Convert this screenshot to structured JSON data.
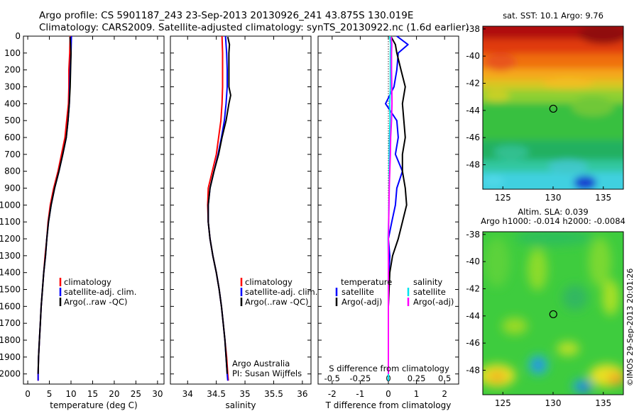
{
  "header": {
    "line1": "Argo profile: CS 5901187_243 23-Sep-2013 20130926_241 43.875S 130.019E",
    "line2": "Climatology: CARS2009. Satellite-adjusted climatology: synTS_20130922.nc (1.6d earlier)"
  },
  "side_label": "©IMOS 29-Sep-2013 20:01:26",
  "colors": {
    "climatology": "#ff0000",
    "satellite": "#0000ff",
    "argo": "#000000",
    "sat_diff": "#00e5ee",
    "argo_diff": "#ff00ff"
  },
  "chart_data": [
    {
      "type": "line",
      "panel": "temperature",
      "xlabel": "temperature (deg C)",
      "ylabel": "",
      "xlim": [
        -1,
        31.5
      ],
      "ylim": [
        2060,
        0
      ],
      "xticks": [
        0,
        5,
        10,
        15,
        20,
        25,
        30
      ],
      "yticks": [
        0,
        100,
        200,
        300,
        400,
        500,
        600,
        700,
        800,
        900,
        1000,
        1100,
        1200,
        1300,
        1400,
        1500,
        1600,
        1700,
        1800,
        1900,
        2000
      ],
      "legend": [
        "climatology",
        "satellite-adj. clim.",
        "Argo(..raw -QC)"
      ],
      "series": [
        {
          "name": "climatology",
          "color": "#ff0000",
          "depth": [
            0,
            100,
            200,
            300,
            400,
            500,
            600,
            700,
            800,
            900,
            1000,
            1100,
            1200,
            1300,
            1400,
            1500,
            1600,
            1700,
            1800,
            1900,
            2000,
            2040
          ],
          "values": [
            9.8,
            9.7,
            9.5,
            9.5,
            9.4,
            9.0,
            8.6,
            7.8,
            7.0,
            6.0,
            5.2,
            4.7,
            4.4,
            4.0,
            3.7,
            3.4,
            3.1,
            2.9,
            2.7,
            2.5,
            2.4,
            2.4
          ]
        },
        {
          "name": "satellite-adj. clim.",
          "color": "#0000ff",
          "depth": [
            0,
            100,
            200,
            300,
            400,
            500,
            600,
            700,
            800,
            900,
            1000,
            1100,
            1200,
            1300,
            1400,
            1500,
            1600,
            1700,
            1800,
            1900,
            2000,
            2040
          ],
          "values": [
            10.1,
            10.0,
            9.8,
            9.7,
            9.6,
            9.3,
            8.9,
            8.1,
            7.2,
            6.2,
            5.4,
            4.8,
            4.4,
            4.1,
            3.7,
            3.4,
            3.1,
            2.9,
            2.7,
            2.5,
            2.4,
            2.4
          ]
        },
        {
          "name": "Argo(..raw -QC)",
          "color": "#000000",
          "depth": [
            5,
            50,
            100,
            200,
            300,
            400,
            500,
            600,
            700,
            800,
            900,
            1000,
            1100,
            1200,
            1300,
            1400,
            1500,
            1600,
            1700,
            1800,
            1900,
            2000
          ],
          "values": [
            9.76,
            9.9,
            10.0,
            9.9,
            9.8,
            9.6,
            9.3,
            8.9,
            8.1,
            7.2,
            6.2,
            5.4,
            4.8,
            4.4,
            4.1,
            3.7,
            3.4,
            3.1,
            2.9,
            2.7,
            2.5,
            2.4
          ]
        }
      ]
    },
    {
      "type": "line",
      "panel": "salinity",
      "xlabel": "salinity",
      "ylabel": "",
      "xlim": [
        33.7,
        36.15
      ],
      "ylim": [
        2060,
        0
      ],
      "xticks": [
        34,
        34.5,
        35,
        35.5,
        36
      ],
      "legend": [
        "climatology",
        "satellite-adj. clim.",
        "Argo(..raw -QC)"
      ],
      "annotations": [
        "Argo Australia",
        "PI: Susan Wijffels"
      ],
      "series": [
        {
          "name": "climatology",
          "color": "#ff0000",
          "depth": [
            0,
            100,
            200,
            300,
            400,
            500,
            600,
            700,
            800,
            900,
            1000,
            1100,
            1200,
            1300,
            1400,
            1500,
            1600,
            1700,
            1800,
            1900,
            2000,
            2040
          ],
          "values": [
            34.6,
            34.61,
            34.61,
            34.61,
            34.6,
            34.58,
            34.54,
            34.5,
            34.43,
            34.36,
            34.35,
            34.36,
            34.39,
            34.44,
            34.5,
            34.55,
            34.59,
            34.62,
            34.65,
            34.68,
            34.7,
            34.71
          ]
        },
        {
          "name": "satellite-adj. clim.",
          "color": "#0000ff",
          "depth": [
            0,
            100,
            200,
            300,
            400,
            500,
            600,
            700,
            800,
            900,
            1000,
            1100,
            1200,
            1300,
            1400,
            1500,
            1600,
            1700,
            1800,
            1900,
            2000,
            2040
          ],
          "values": [
            34.66,
            34.68,
            34.69,
            34.69,
            34.67,
            34.64,
            34.59,
            34.53,
            34.46,
            34.39,
            34.36,
            34.36,
            34.39,
            34.44,
            34.5,
            34.55,
            34.59,
            34.62,
            34.65,
            34.67,
            34.69,
            34.7
          ]
        },
        {
          "name": "Argo(..raw -QC)",
          "color": "#000000",
          "depth": [
            5,
            50,
            100,
            200,
            300,
            350,
            400,
            500,
            600,
            700,
            800,
            900,
            1000,
            1100,
            1200,
            1300,
            1400,
            1500,
            1600,
            1700,
            1800,
            1900,
            2000
          ],
          "values": [
            34.7,
            34.73,
            34.72,
            34.72,
            34.72,
            34.75,
            34.72,
            34.67,
            34.6,
            34.54,
            34.46,
            34.39,
            34.36,
            34.36,
            34.39,
            34.44,
            34.5,
            34.55,
            34.59,
            34.62,
            34.65,
            34.67,
            34.69
          ]
        }
      ]
    },
    {
      "type": "line",
      "panel": "differences",
      "xlabel": "T difference from climatology",
      "xlabel_top": "S difference from climatology",
      "xlim": [
        -2.5,
        2.5
      ],
      "ylim": [
        2060,
        0
      ],
      "xticks": [
        -2,
        -1,
        0,
        1,
        2
      ],
      "xticks_s": [
        -0.5,
        -0.25,
        0,
        0.25,
        0.5
      ],
      "legend_temperature_title": "temperature",
      "legend_salinity_title": "salinity",
      "legend_temperature": [
        "satellite",
        "Argo(-adj)"
      ],
      "legend_salinity": [
        "satellite",
        "Argo(-adj)"
      ],
      "series": [
        {
          "name": "temperature satellite",
          "color": "#0000ff",
          "depth": [
            0,
            50,
            100,
            200,
            300,
            400,
            500,
            600,
            700,
            800,
            900,
            1000,
            1100,
            1200,
            1300,
            1400,
            1600,
            1800,
            2000,
            2040
          ],
          "values": [
            0.3,
            0.7,
            0.35,
            0.3,
            0.2,
            -0.1,
            0.3,
            0.35,
            0.25,
            0.5,
            0.3,
            0.25,
            0.12,
            0.0,
            0.05,
            0.02,
            0.0,
            0.0,
            0.0,
            0.0
          ]
        },
        {
          "name": "temperature Argo(-adj)",
          "color": "#000000",
          "depth": [
            5,
            50,
            100,
            200,
            300,
            400,
            500,
            600,
            700,
            800,
            900,
            1000,
            1100,
            1200,
            1300,
            1400,
            1600,
            1800,
            2000
          ],
          "values": [
            0.1,
            0.25,
            0.3,
            0.45,
            0.6,
            0.5,
            0.55,
            0.6,
            0.5,
            0.5,
            0.6,
            0.65,
            0.5,
            0.35,
            0.15,
            0.05,
            0.0,
            0.0,
            0.0
          ]
        },
        {
          "name": "salinity satellite",
          "color": "#00e5ee",
          "depth": [
            0,
            50,
            100,
            200,
            300,
            400,
            500,
            600,
            700,
            800,
            900,
            1000,
            1100,
            1200,
            1300,
            1400,
            1600,
            1800,
            2000,
            2040
          ],
          "values": [
            0.05,
            0.08,
            0.07,
            0.07,
            0.07,
            0.05,
            0.06,
            0.04,
            0.03,
            0.03,
            0.03,
            0.02,
            0.01,
            -0.01,
            0.0,
            0.0,
            0.0,
            0.0,
            0.0,
            0.0
          ]
        },
        {
          "name": "salinity Argo(-adj)",
          "color": "#ff00ff",
          "depth": [
            5,
            50,
            100,
            200,
            300,
            400,
            500,
            600,
            700,
            800,
            900,
            1000,
            1100,
            1200,
            1300,
            1400,
            1600,
            1800,
            2000
          ],
          "values": [
            0.1,
            0.12,
            0.11,
            0.11,
            0.12,
            0.13,
            0.11,
            0.08,
            0.07,
            0.05,
            0.03,
            0.02,
            0.01,
            0.0,
            0.0,
            0.0,
            0.0,
            0.0,
            0.0
          ]
        }
      ]
    },
    {
      "type": "heatmap",
      "panel": "sst_map",
      "title": "sat. SST: 10.1  Argo: 9.76",
      "xlim": [
        123,
        137
      ],
      "ylim": [
        -49.8,
        -37.8
      ],
      "xticks": [
        125,
        130,
        135
      ],
      "yticks": [
        -38,
        -40,
        -42,
        -44,
        -46,
        -48
      ],
      "marker": {
        "lon": 130.019,
        "lat": -43.875
      }
    },
    {
      "type": "heatmap",
      "panel": "sla_map",
      "title_line1": "Altim. SLA: 0.039",
      "title_line2": "Argo h1000: -0.014  h2000: -0.0084",
      "xlim": [
        123,
        137
      ],
      "ylim": [
        -49.8,
        -37.8
      ],
      "xticks": [
        125,
        130,
        135
      ],
      "yticks": [
        -38,
        -40,
        -42,
        -44,
        -46,
        -48
      ],
      "marker": {
        "lon": 130.019,
        "lat": -43.875
      }
    }
  ]
}
